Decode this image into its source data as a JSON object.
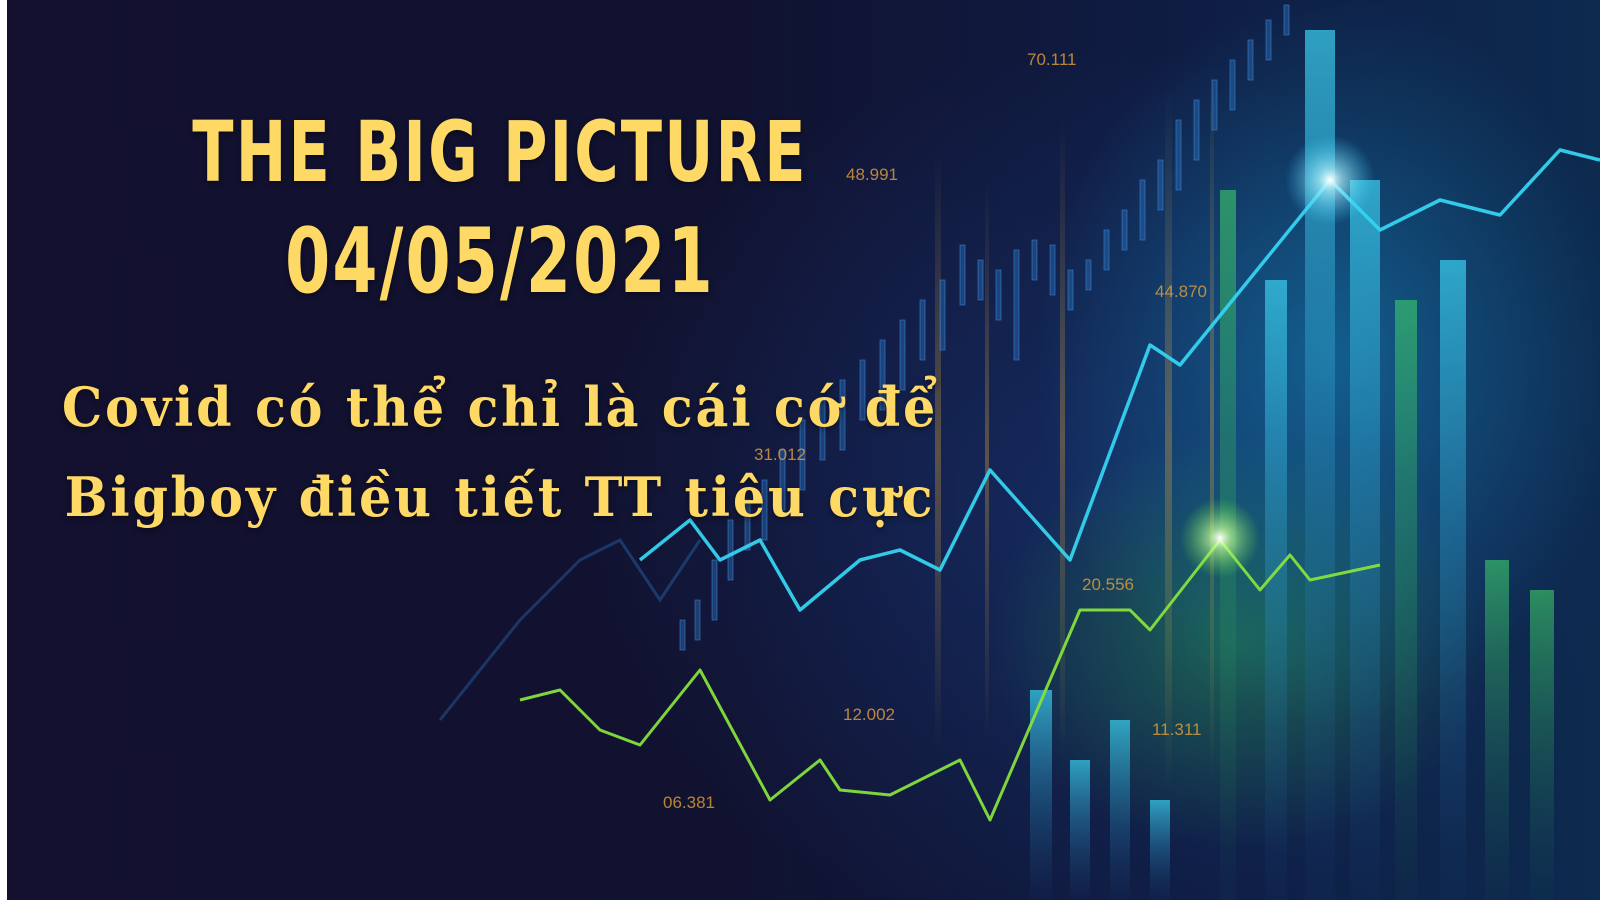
{
  "headline": {
    "line1": "THE BIG PICTURE",
    "line2": "04/05/2021"
  },
  "subtitle": {
    "line1": "Covid có thể chỉ là cái cớ để",
    "line2": "Bigboy điều tiết TT tiêu cực"
  },
  "background_numbers": [
    "70.111",
    "48.991",
    "44.870",
    "31.012",
    "20.556",
    "12.002",
    "11.311",
    "06.381"
  ],
  "colors": {
    "background": "#0e0f2c",
    "text": "#ffd966",
    "cyan_line": "#35d3f0",
    "green_line": "#86e03c",
    "number_label": "#e4a13c"
  }
}
